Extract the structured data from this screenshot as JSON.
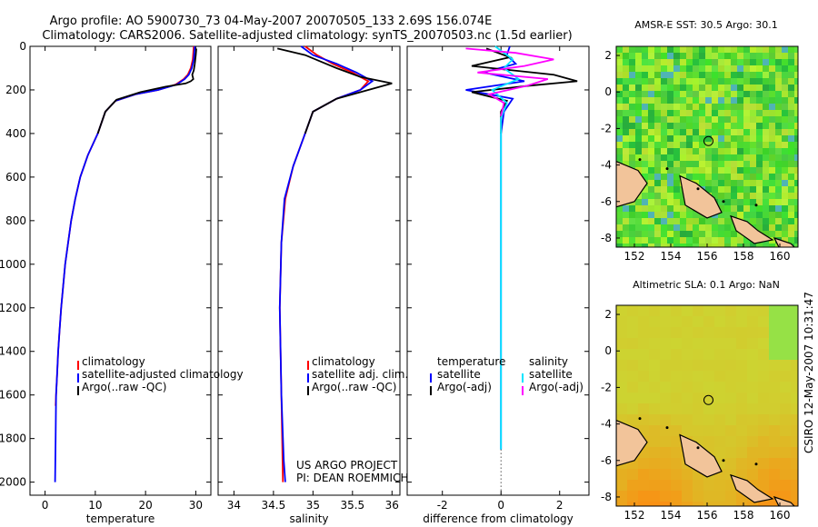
{
  "header": {
    "line1": "Argo profile: AO 5900730_73 04-May-2007 20070505_133 2.69S 156.074E",
    "line2": "Climatology: CARS2006. Satellite-adjusted climatology: synTS_20070503.nc (1.5d earlier)"
  },
  "side_caption": "CSIRO 12-May-2007 10:31:47",
  "colors": {
    "climatology": "#ff0000",
    "satellite": "#0000ff",
    "argo": "#000000",
    "argo_adj": "#ff00ff",
    "sal_satellite": "#00e5ff"
  },
  "chart_data": [
    {
      "type": "line",
      "xlabel": "temperature",
      "xlim": [
        -3,
        33
      ],
      "ylim": [
        2060,
        0
      ],
      "xticks": [
        0,
        10,
        20,
        30
      ],
      "yticks": [
        0,
        200,
        400,
        600,
        800,
        1000,
        1200,
        1400,
        1600,
        1800,
        2000
      ],
      "legend": {
        "placement": "lower-right",
        "items": [
          "climatology",
          "satellite-adjusted climatology",
          "Argo(..raw -QC)"
        ]
      },
      "series": [
        {
          "name": "climatology",
          "color": "#ff0000",
          "x": [
            29.6,
            29.4,
            29.0,
            28.4,
            27.6,
            26.0,
            22.5,
            18.0,
            14.0,
            12.0,
            10.5,
            8.5,
            7.0,
            6.0,
            5.2,
            4.6,
            4.0,
            3.6,
            3.2,
            2.9,
            2.6,
            2.4,
            2.2,
            2.1
          ],
          "y": [
            0,
            60,
            100,
            130,
            150,
            175,
            200,
            220,
            250,
            300,
            400,
            500,
            600,
            700,
            800,
            900,
            1000,
            1100,
            1200,
            1300,
            1400,
            1500,
            1600,
            1650
          ]
        },
        {
          "name": "satellite-adjusted climatology",
          "color": "#0000ff",
          "x": [
            29.8,
            29.6,
            29.2,
            28.6,
            27.8,
            26.2,
            22.5,
            18.0,
            14.0,
            12.0,
            10.5,
            8.5,
            7.0,
            6.0,
            5.2,
            4.6,
            4.0,
            3.6,
            3.2,
            2.9,
            2.6,
            2.4,
            2.2,
            2.1,
            2.0
          ],
          "y": [
            0,
            60,
            100,
            130,
            150,
            175,
            200,
            220,
            250,
            300,
            400,
            500,
            600,
            700,
            800,
            900,
            1000,
            1100,
            1200,
            1300,
            1400,
            1500,
            1600,
            1800,
            2000
          ]
        },
        {
          "name": "Argo(..raw -QC)",
          "color": "#000000",
          "x": [
            30.1,
            30.0,
            29.8,
            29.6,
            29.3,
            29.5,
            29.0,
            28.0,
            24.0,
            19.0,
            14.2,
            12.0,
            10.5
          ],
          "y": [
            10,
            40,
            80,
            110,
            130,
            150,
            160,
            170,
            185,
            210,
            245,
            300,
            400
          ]
        }
      ]
    },
    {
      "type": "line",
      "xlabel": "salinity",
      "xlim": [
        33.8,
        36.1
      ],
      "ylim": [
        2060,
        0
      ],
      "xticks": [
        34,
        34.5,
        35,
        35.5,
        36
      ],
      "legend": {
        "placement": "lower-right",
        "items": [
          "climatology",
          "satellite adj. clim.",
          "Argo(..raw -QC)"
        ]
      },
      "annotation": [
        "US ARGO PROJECT",
        "PI: DEAN ROEMMICH"
      ],
      "series": [
        {
          "name": "climatology",
          "color": "#ff0000",
          "x": [
            34.9,
            35.05,
            35.25,
            35.5,
            35.7,
            35.6,
            35.3,
            35.0,
            34.9,
            34.75,
            34.65,
            34.6,
            34.58,
            34.6,
            34.62
          ],
          "y": [
            0,
            40,
            80,
            120,
            160,
            200,
            240,
            300,
            400,
            550,
            700,
            900,
            1200,
            1600,
            2000
          ]
        },
        {
          "name": "satellite adj. clim.",
          "color": "#0000ff",
          "x": [
            34.85,
            35.0,
            35.3,
            35.55,
            35.75,
            35.6,
            35.3,
            35.0,
            34.9,
            34.75,
            34.64,
            34.6,
            34.58,
            34.6,
            34.63,
            34.65
          ],
          "y": [
            0,
            40,
            80,
            120,
            160,
            200,
            240,
            300,
            400,
            550,
            700,
            900,
            1200,
            1600,
            1900,
            2000
          ]
        },
        {
          "name": "Argo(..raw -QC)",
          "color": "#000000",
          "x": [
            34.55,
            34.9,
            35.1,
            35.3,
            35.6,
            36.0,
            35.7,
            35.3,
            35.0,
            34.9
          ],
          "y": [
            10,
            40,
            70,
            100,
            140,
            170,
            200,
            240,
            300,
            400
          ]
        }
      ]
    },
    {
      "type": "line",
      "xlabel": "difference from climatology",
      "xlim": [
        -3.2,
        3.0
      ],
      "ylim": [
        2060,
        0
      ],
      "xticks": [
        -2,
        0,
        2
      ],
      "legend": {
        "placement": "lower-right",
        "items": [
          "temperature",
          "satellite",
          "Argo(-adj)",
          "salinity",
          "satellite",
          "Argo(-adj)"
        ]
      },
      "series": [
        {
          "name": "temperature satellite",
          "color": "#0000ff",
          "x": [
            0.3,
            0.2,
            0.5,
            -0.6,
            0.8,
            -1.2,
            0.4,
            0.1,
            0,
            0,
            0,
            0
          ],
          "y": [
            0,
            40,
            80,
            120,
            160,
            200,
            240,
            300,
            400,
            800,
            1400,
            1850
          ]
        },
        {
          "name": "temperature Argo(-adj)",
          "color": "#000000",
          "x": [
            -0.5,
            0.3,
            -1.0,
            1.8,
            2.6,
            1.0,
            -1.0,
            0.2,
            0,
            0
          ],
          "y": [
            10,
            50,
            90,
            130,
            160,
            180,
            210,
            250,
            300,
            400
          ]
        },
        {
          "name": "salinity satellite",
          "color": "#00e5ff",
          "x": [
            -0.2,
            0.4,
            0.1,
            0.6,
            -0.3,
            0.2,
            0,
            0,
            0,
            0
          ],
          "y": [
            0,
            60,
            100,
            150,
            200,
            260,
            330,
            600,
            1200,
            1850
          ]
        },
        {
          "name": "salinity Argo(-adj)",
          "color": "#ff00ff",
          "x": [
            -1.2,
            0.5,
            1.8,
            0.8,
            -0.8,
            1.6,
            0.9,
            -0.4,
            0.1,
            0
          ],
          "y": [
            10,
            30,
            60,
            90,
            120,
            150,
            180,
            220,
            260,
            320
          ]
        }
      ]
    },
    {
      "type": "heatmap",
      "title": "AMSR-E SST: 30.5 Argo: 30.1",
      "xlim": [
        151,
        161
      ],
      "ylim": [
        -8.5,
        2.5
      ],
      "xticks": [
        152,
        154,
        156,
        158,
        160
      ],
      "yticks": [
        -8,
        -6,
        -4,
        -2,
        0,
        2
      ],
      "marker": {
        "lon": 156.074,
        "lat": -2.69
      }
    },
    {
      "type": "heatmap",
      "title": "Altimetric SLA: 0.1 Argo: NaN",
      "xlim": [
        151,
        161
      ],
      "ylim": [
        -8.5,
        2.5
      ],
      "xticks": [
        152,
        154,
        156,
        158,
        160
      ],
      "yticks": [
        -8,
        -6,
        -4,
        -2,
        0,
        2
      ],
      "marker": {
        "lon": 156.074,
        "lat": -2.69
      }
    }
  ]
}
